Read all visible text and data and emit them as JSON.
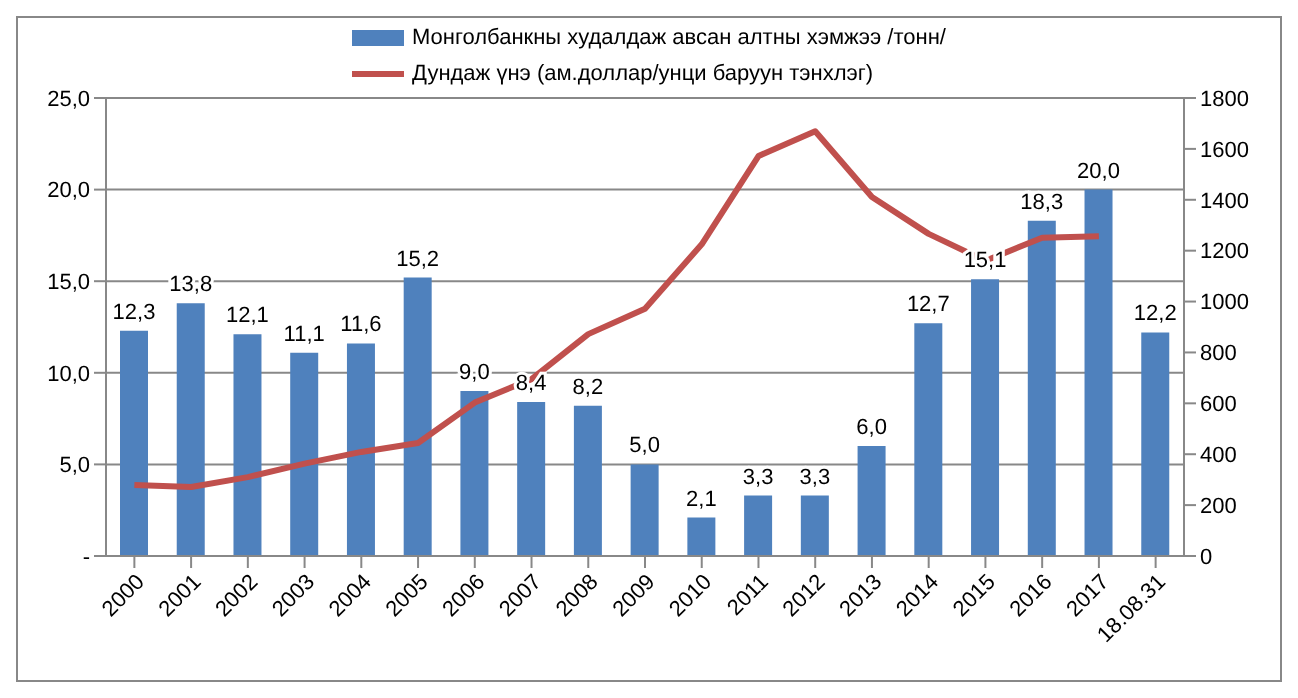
{
  "chart_data": {
    "type": "bar",
    "categories": [
      "2000",
      "2001",
      "2002",
      "2003",
      "2004",
      "2005",
      "2006",
      "2007",
      "2008",
      "2009",
      "2010",
      "2011",
      "2012",
      "2013",
      "2014",
      "2015",
      "2016",
      "2017",
      "18.08.31"
    ],
    "series": [
      {
        "name": "Монголбанкны худалдаж авсан алтны хэмжээ /тонн/",
        "color": "#4f81bd",
        "values": [
          12.3,
          13.8,
          12.1,
          11.1,
          11.6,
          15.2,
          9.0,
          8.4,
          8.2,
          5.0,
          2.1,
          3.3,
          3.3,
          6.0,
          12.7,
          15.1,
          18.3,
          20.0,
          12.2
        ],
        "value_labels": [
          "12,3",
          "13,8",
          "12,1",
          "11,1",
          "11,6",
          "15,2",
          "9,0",
          "8,4",
          "8,2",
          "5,0",
          "2,1",
          "3,3",
          "3,3",
          "6,0",
          "12,7",
          "15,1",
          "18,3",
          "20,0",
          "12,2"
        ]
      },
      {
        "name": "Дундаж үнэ (ам.доллар/унци баруун тэнхлэг)",
        "type": "line",
        "axis": "y2",
        "color": "#c0504d",
        "values": [
          279,
          271,
          310,
          363,
          409,
          444,
          603,
          695,
          872,
          972,
          1225,
          1572,
          1669,
          1411,
          1266,
          1160,
          1251,
          1257,
          null
        ]
      }
    ],
    "ylim": [
      0,
      25
    ],
    "yticks": [
      {
        "value": 0,
        "label": "-"
      },
      {
        "value": 5,
        "label": "5,0"
      },
      {
        "value": 10,
        "label": "10,0"
      },
      {
        "value": 15,
        "label": "15,0"
      },
      {
        "value": 20,
        "label": "20,0"
      },
      {
        "value": 25,
        "label": "25,0"
      }
    ],
    "y2lim": [
      0,
      1800
    ],
    "y2ticks": [
      0,
      200,
      400,
      600,
      800,
      1000,
      1200,
      1400,
      1600,
      1800
    ],
    "grid": "y",
    "legend": "top",
    "marker": "none",
    "line_style": "solid"
  }
}
